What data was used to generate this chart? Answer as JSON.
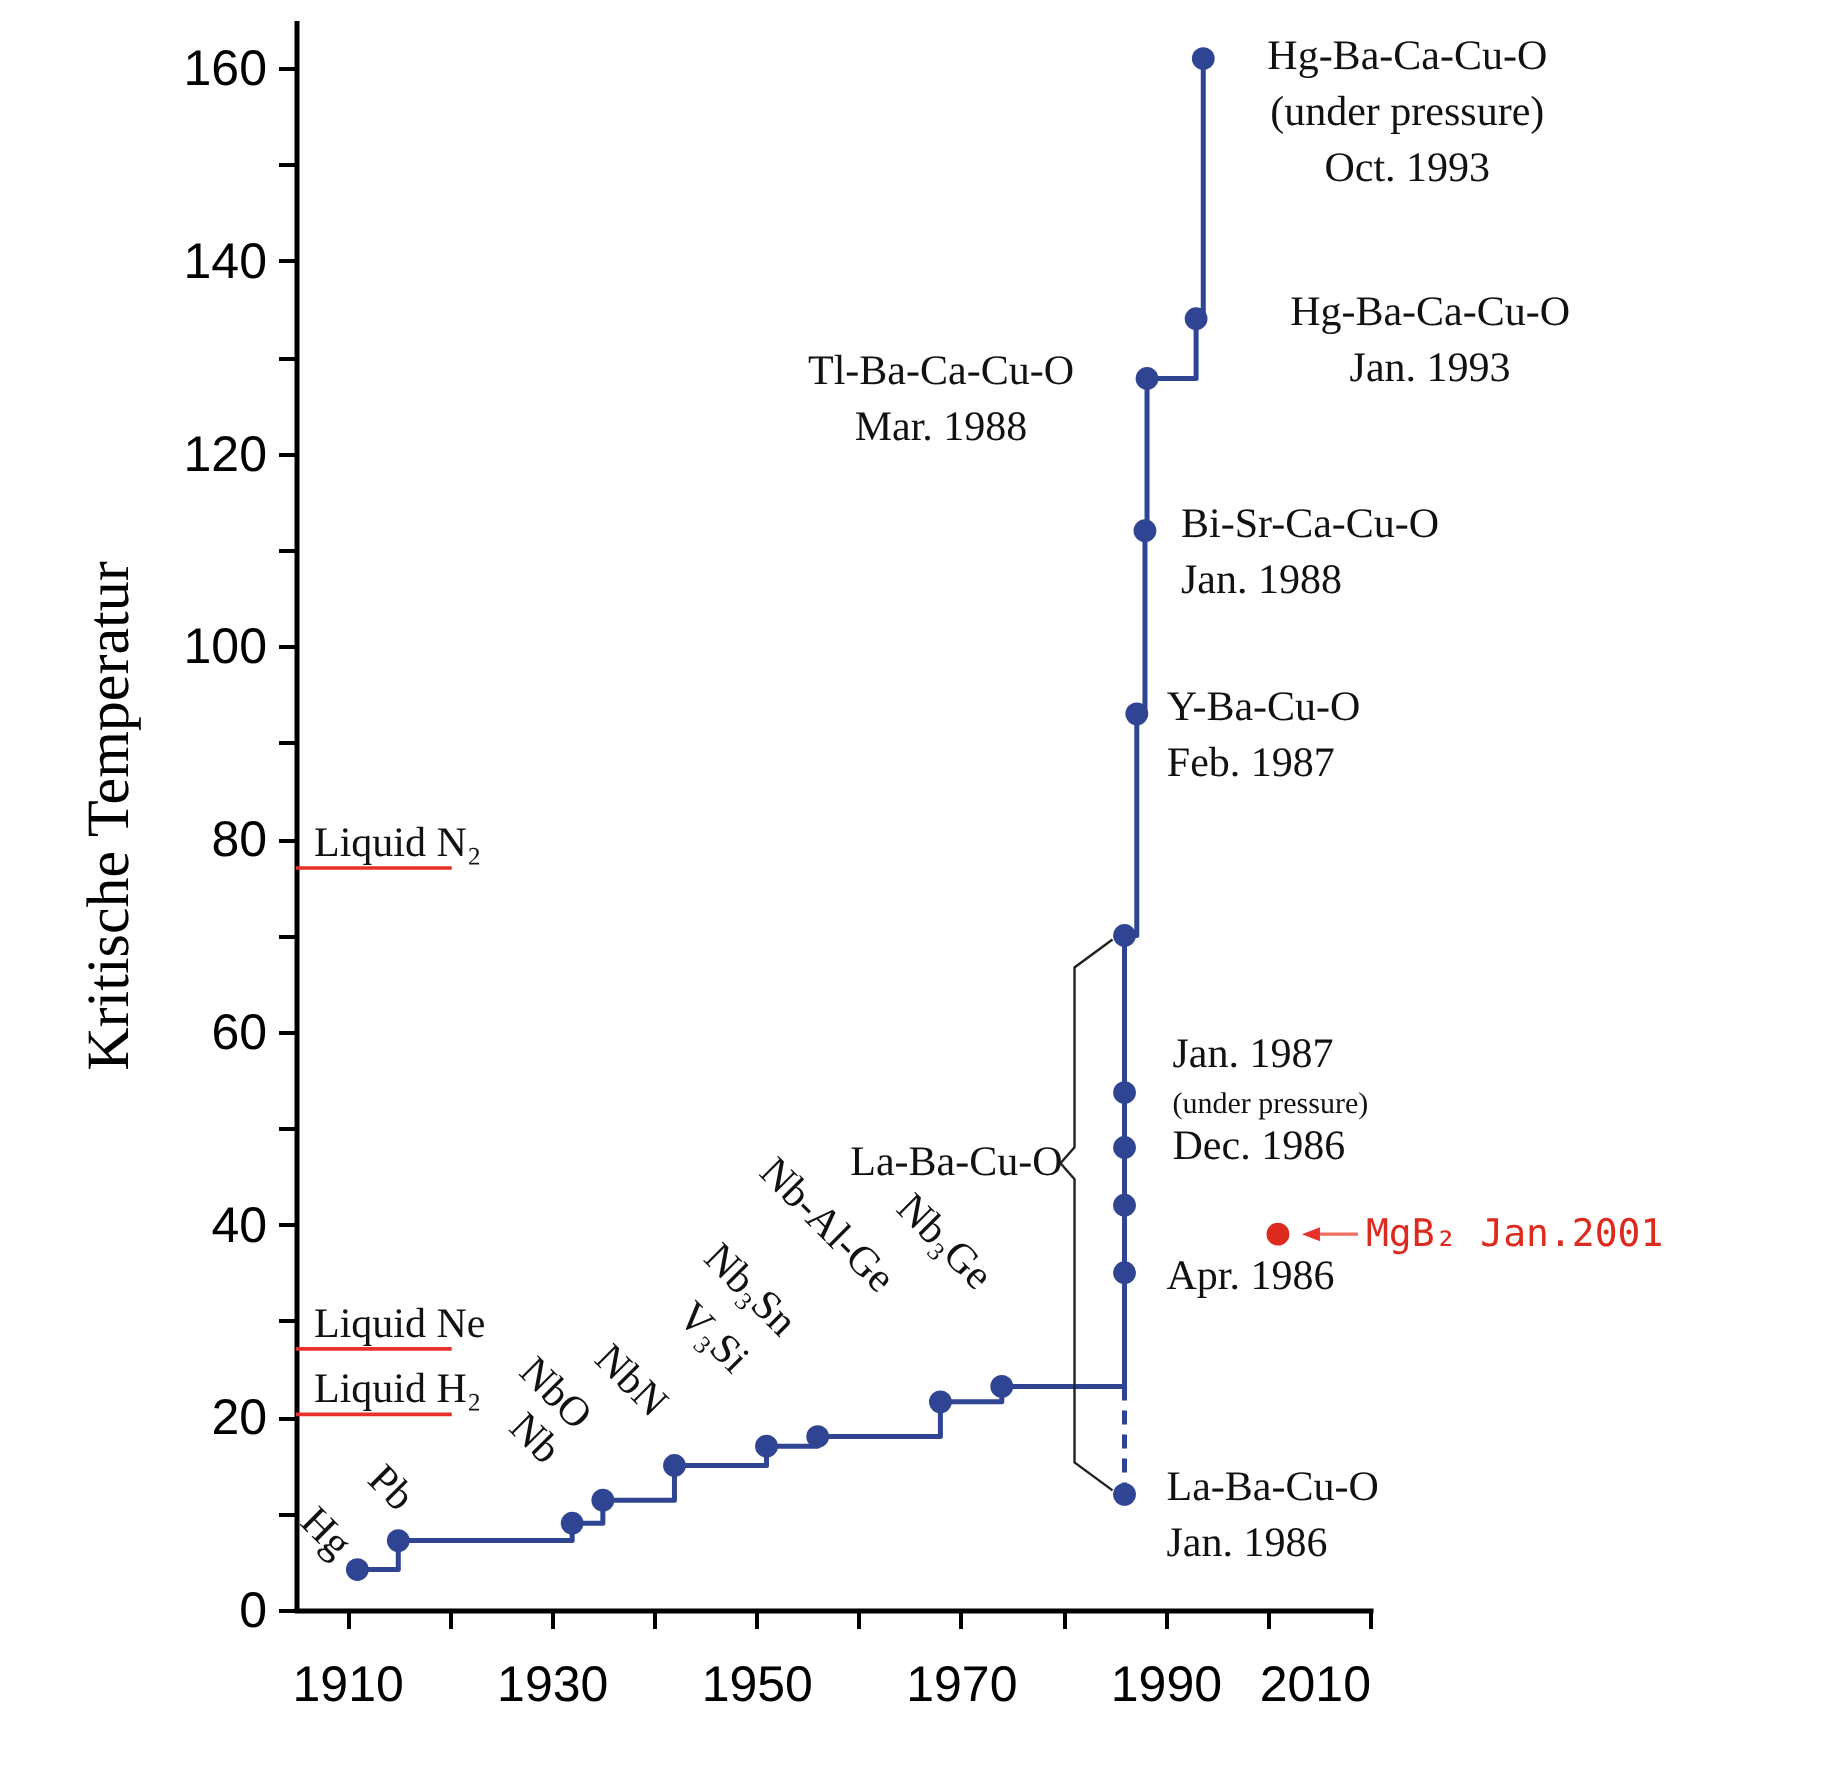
{
  "chart_data": {
    "type": "step",
    "ylabel": "Kritische Temperatur",
    "xlim": [
      1905,
      2010
    ],
    "ylim": [
      0,
      165
    ],
    "xticks": [
      1910,
      {
        "value": 1920,
        "label": null
      },
      1930,
      {
        "value": 1940,
        "label": null
      },
      1950,
      {
        "value": 1960,
        "label": null
      },
      1970,
      {
        "value": 1980,
        "label": null
      },
      1990,
      {
        "value": 2000,
        "label": null
      },
      2010
    ],
    "yticks": [
      0,
      {
        "value": 10,
        "label": null
      },
      20,
      {
        "value": 30,
        "label": null
      },
      40,
      {
        "value": 50,
        "label": null
      },
      60,
      {
        "value": 70,
        "label": null
      },
      80,
      {
        "value": 90,
        "label": null
      },
      100,
      {
        "value": 110,
        "label": null
      },
      120,
      {
        "value": 130,
        "label": null
      },
      140,
      {
        "value": 150,
        "label": null
      },
      160
    ],
    "marker": "circle",
    "series": [
      {
        "color": "#2f4593",
        "x": [
          1911,
          1915,
          1932,
          1935,
          1942,
          1951,
          1956,
          1968,
          1974,
          1986,
          1986,
          1986,
          1986,
          1986,
          1987.2,
          1988,
          1988.2,
          1993,
          1993.7
        ],
        "values": [
          4.2,
          7.2,
          9,
          11.4,
          15,
          17,
          18,
          21.6,
          23.2,
          35,
          42,
          48,
          53.7,
          70,
          93,
          112,
          127.8,
          134,
          161
        ]
      },
      {
        "type": "line",
        "line_style": "dashed",
        "marker": "none",
        "color": "#2f4593",
        "x": [
          1986,
          1986
        ],
        "values": [
          23.2,
          12
        ]
      },
      {
        "type": "scatter",
        "color": "#2f4593",
        "x": [
          1986
        ],
        "values": [
          12
        ]
      },
      {
        "type": "scatter",
        "color": "#dd2a1f",
        "x": [
          2001
        ],
        "values": [
          39
        ]
      }
    ],
    "ref_lines": [
      {
        "axis": "y",
        "value": 77,
        "label": "Liquid N₂",
        "color": "#e8302a"
      },
      {
        "axis": "y",
        "value": 27.1,
        "label": "Liquid Ne",
        "color": "#e8302a"
      },
      {
        "axis": "y",
        "value": 20.3,
        "label": "Liquid H₂",
        "color": "#e8302a"
      }
    ],
    "annotations": [
      {
        "text": "Hg",
        "x": 1911,
        "y": 4.2
      },
      {
        "text": "Pb",
        "x": 1915,
        "y": 7.2
      },
      {
        "text": "Nb",
        "x": 1932,
        "y": 9
      },
      {
        "text": "NbO",
        "x": 1935,
        "y": 11.4
      },
      {
        "text": "NbN",
        "x": 1942,
        "y": 15
      },
      {
        "text": "V₃Si",
        "x": 1951,
        "y": 17
      },
      {
        "text": "Nb₃Sn",
        "x": 1956,
        "y": 18
      },
      {
        "text": "Nb-Al-Ge",
        "x": 1968,
        "y": 21.6
      },
      {
        "text": "Nb₃Ge",
        "x": 1974,
        "y": 23.2
      },
      {
        "text": "La-Ba-Cu-O\n   Jan. 1986",
        "x": 1986,
        "y": 12
      },
      {
        "text": "Apr. 1986",
        "x": 1986,
        "y": 35
      },
      {
        "text": "Dec. 1986",
        "x": 1986,
        "y": 48
      },
      {
        "text": "Jan. 1987",
        "x": 1986,
        "y": 53.7
      },
      {
        "text": "(under pressure)",
        "x": 1986,
        "y": 53.7
      },
      {
        "text": "La-Ba-Cu-O",
        "x": 1986,
        "y": 42
      },
      {
        "text": "Y-Ba-Cu-O\n Feb. 1987",
        "x": 1987.2,
        "y": 93
      },
      {
        "text": "Bi-Sr-Ca-Cu-O\n   Jan. 1988",
        "x": 1988,
        "y": 112
      },
      {
        "text": "Tl-Ba-Ca-Cu-O\nMar. 1988",
        "x": 1988.2,
        "y": 127.8
      },
      {
        "text": "Hg-Ba-Ca-Cu-O\nJan. 1993",
        "x": 1993,
        "y": 134
      },
      {
        "text": "Hg-Ba-Ca-Cu-O\n(under pressure)\nOct. 1993",
        "x": 1993.7,
        "y": 161
      },
      {
        "text": "MgB₂ Jan.2001",
        "x": 2001,
        "y": 39
      }
    ]
  }
}
